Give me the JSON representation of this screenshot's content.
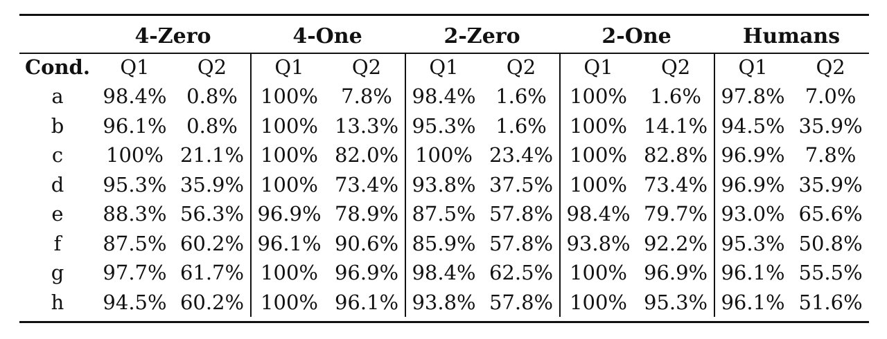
{
  "table": {
    "corner": "",
    "cond_label": "Cond.",
    "groups": [
      "4-Zero",
      "4-One",
      "2-Zero",
      "2-One",
      "Humans"
    ],
    "subcolumns": [
      "Q1",
      "Q2"
    ],
    "rows": [
      {
        "cond": "a",
        "cells": [
          "98.4%",
          "0.8%",
          "100%",
          "7.8%",
          "98.4%",
          "1.6%",
          "100%",
          "1.6%",
          "97.8%",
          "7.0%"
        ]
      },
      {
        "cond": "b",
        "cells": [
          "96.1%",
          "0.8%",
          "100%",
          "13.3%",
          "95.3%",
          "1.6%",
          "100%",
          "14.1%",
          "94.5%",
          "35.9%"
        ]
      },
      {
        "cond": "c",
        "cells": [
          "100%",
          "21.1%",
          "100%",
          "82.0%",
          "100%",
          "23.4%",
          "100%",
          "82.8%",
          "96.9%",
          "7.8%"
        ]
      },
      {
        "cond": "d",
        "cells": [
          "95.3%",
          "35.9%",
          "100%",
          "73.4%",
          "93.8%",
          "37.5%",
          "100%",
          "73.4%",
          "96.9%",
          "35.9%"
        ]
      },
      {
        "cond": "e",
        "cells": [
          "88.3%",
          "56.3%",
          "96.9%",
          "78.9%",
          "87.5%",
          "57.8%",
          "98.4%",
          "79.7%",
          "93.0%",
          "65.6%"
        ]
      },
      {
        "cond": "f",
        "cells": [
          "87.5%",
          "60.2%",
          "96.1%",
          "90.6%",
          "85.9%",
          "57.8%",
          "93.8%",
          "92.2%",
          "95.3%",
          "50.8%"
        ]
      },
      {
        "cond": "g",
        "cells": [
          "97.7%",
          "61.7%",
          "100%",
          "96.9%",
          "98.4%",
          "62.5%",
          "100%",
          "96.9%",
          "96.1%",
          "55.5%"
        ]
      },
      {
        "cond": "h",
        "cells": [
          "94.5%",
          "60.2%",
          "100%",
          "96.1%",
          "93.8%",
          "57.8%",
          "100%",
          "95.3%",
          "96.1%",
          "51.6%"
        ]
      }
    ]
  }
}
